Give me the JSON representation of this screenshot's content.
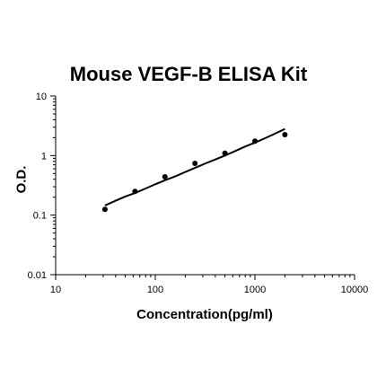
{
  "chart_data": {
    "type": "scatter",
    "title": "Mouse VEGF-B ELISA Kit",
    "xlabel": "Concentration(pg/ml)",
    "ylabel": "O.D.",
    "x_scale": "log",
    "y_scale": "log",
    "xlim": [
      10,
      10000
    ],
    "ylim": [
      0.01,
      10
    ],
    "x_ticks": [
      10,
      100,
      1000,
      10000
    ],
    "y_ticks": [
      0.01,
      0.1,
      1,
      10
    ],
    "x_tick_labels": [
      "10",
      "100",
      "1000",
      "10000"
    ],
    "y_tick_labels": [
      "0.01",
      "0.1",
      "1",
      "10"
    ],
    "grid": false,
    "legend": "none",
    "series": [
      {
        "x": [
          31.25,
          62.5,
          125,
          250,
          500,
          1000,
          2000
        ],
        "y": [
          0.125,
          0.25,
          0.44,
          0.74,
          1.1,
          1.75,
          2.25
        ]
      }
    ],
    "fit_curve": {
      "x": [
        31.25,
        40,
        50,
        62.5,
        80,
        100,
        125,
        160,
        200,
        250,
        320,
        400,
        500,
        640,
        800,
        1000,
        1300,
        1600,
        2000
      ],
      "y": [
        0.145,
        0.175,
        0.205,
        0.235,
        0.28,
        0.33,
        0.385,
        0.45,
        0.53,
        0.62,
        0.74,
        0.86,
        1.0,
        1.2,
        1.42,
        1.65,
        2.0,
        2.35,
        2.8
      ]
    },
    "colors": {
      "points": "#000000",
      "curve": "#000000",
      "axis": "#000000"
    }
  }
}
